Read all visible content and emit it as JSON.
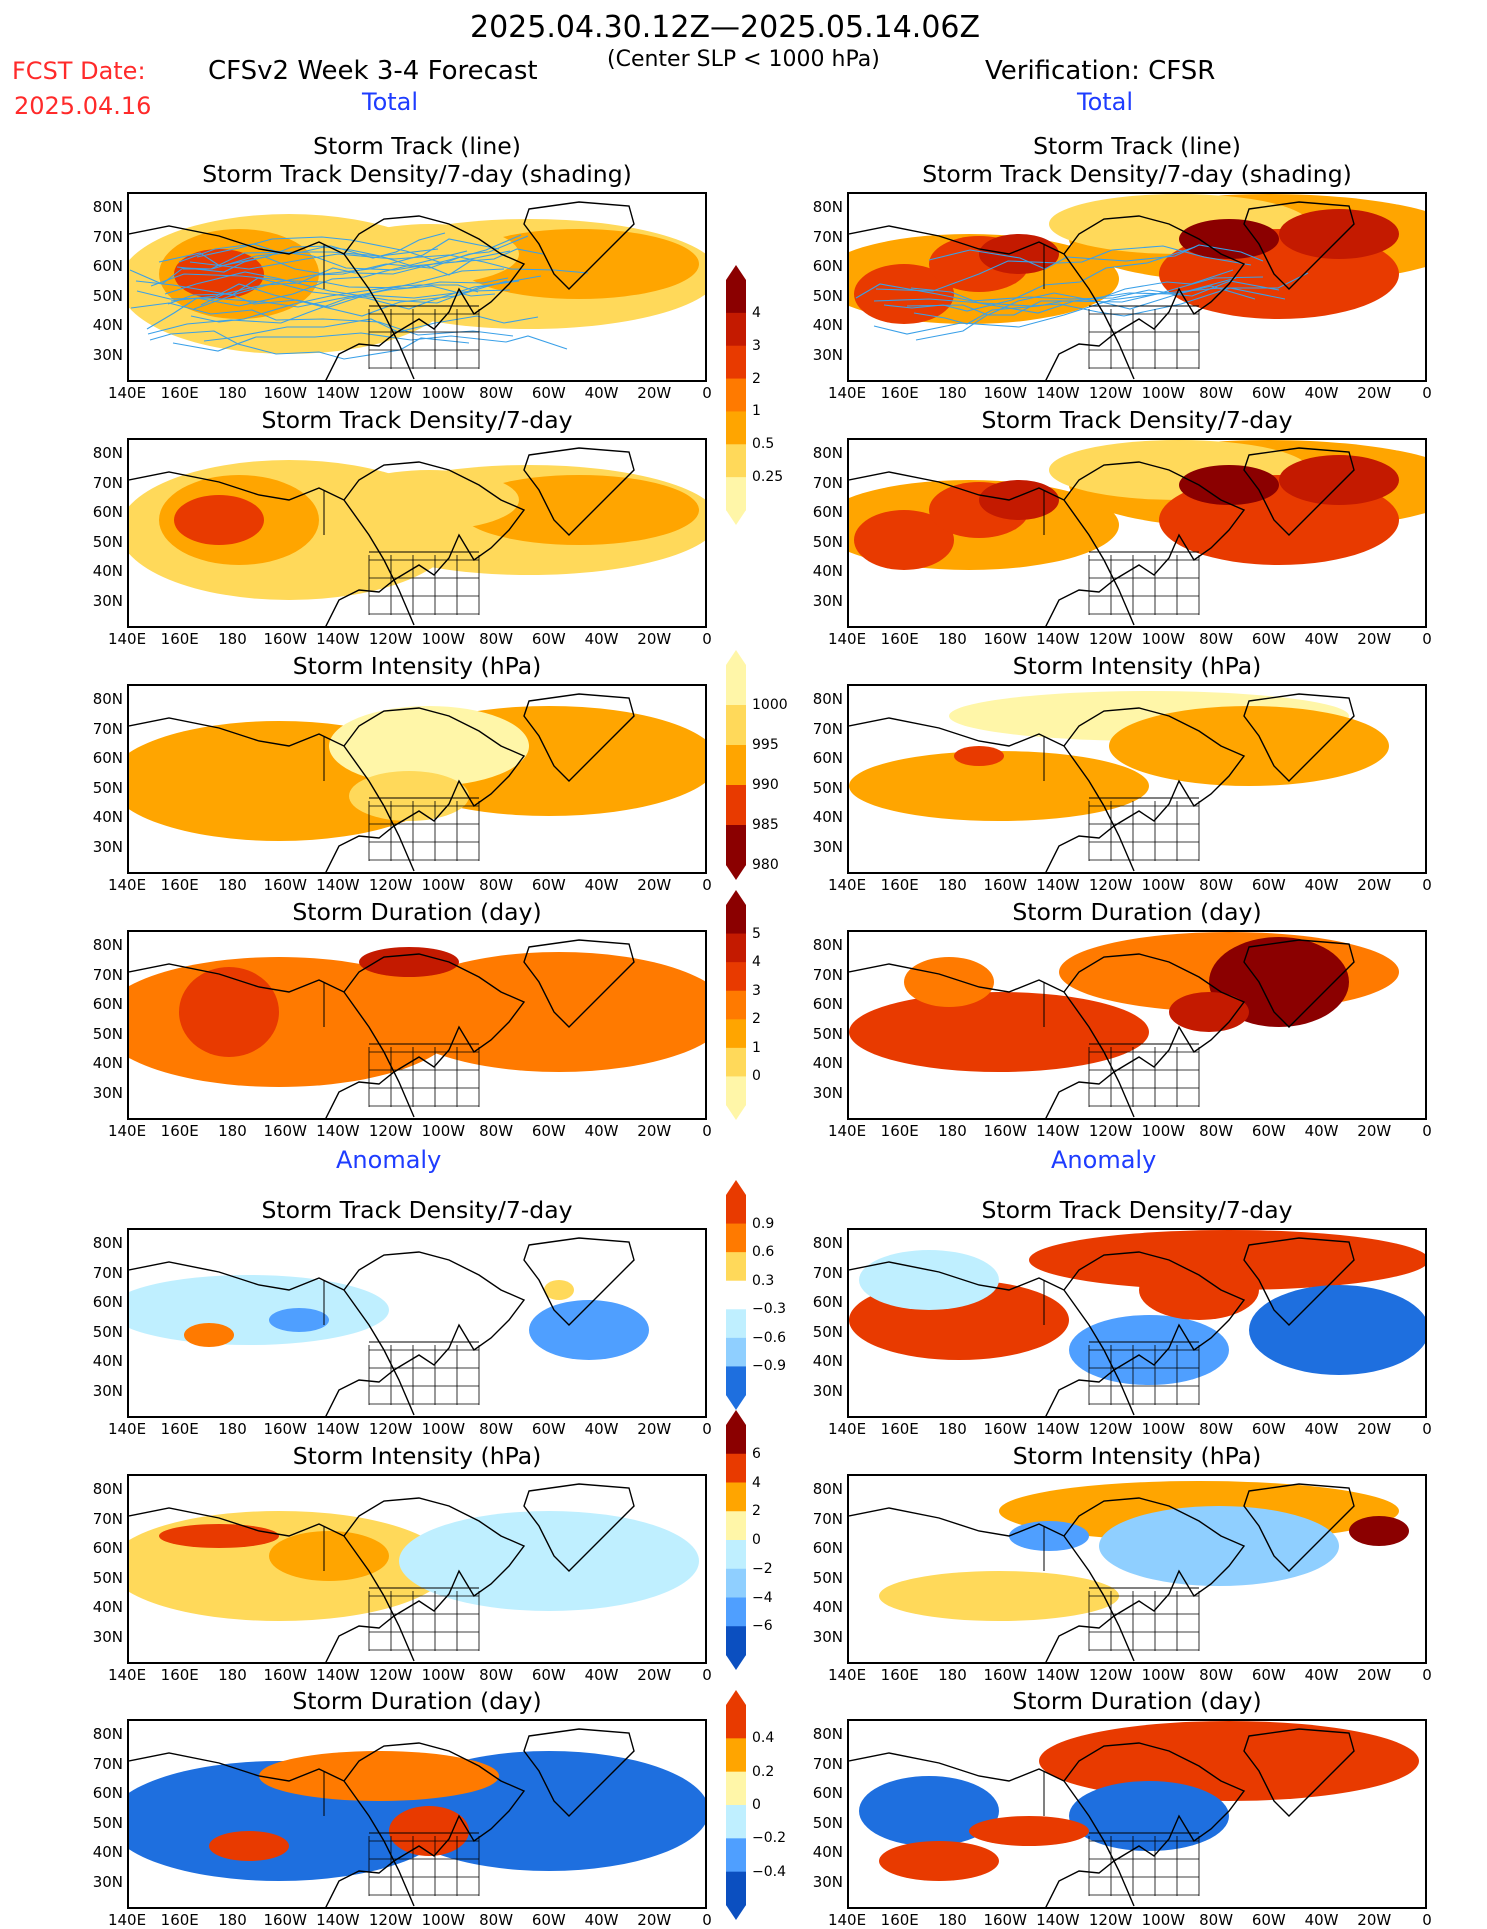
{
  "header": {
    "period": "2025.04.30.12Z—2025.05.14.06Z",
    "criteria": "(Center SLP < 1000 hPa)",
    "fcst_label": "FCST Date:",
    "fcst_date": "2025.04.16",
    "model_label": "CFSv2 Week 3-4 Forecast",
    "verification_label": "Verification: CFSR",
    "section_total": "Total",
    "section_anomaly": "Anomaly"
  },
  "panel_titles": {
    "track_line": "Storm Track (line)",
    "track_shading": "Storm Track Density/7-day (shading)",
    "density": "Storm Track Density/7-day",
    "intensity": "Storm Intensity (hPa)",
    "duration": "Storm Duration (day)"
  },
  "axes": {
    "y_ticks": [
      "80N",
      "70N",
      "60N",
      "50N",
      "40N",
      "30N"
    ],
    "x_ticks": [
      "140E",
      "160E",
      "180",
      "160W",
      "140W",
      "120W",
      "100W",
      "80W",
      "60W",
      "40W",
      "20W",
      "0"
    ]
  },
  "colors": {
    "warm": [
      "#fff6a8",
      "#ffd95a",
      "#ffa500",
      "#ff7a00",
      "#e83a00",
      "#c41a00",
      "#8b0000"
    ],
    "cool": [
      "#bfefff",
      "#8fcfff",
      "#4f9fff",
      "#1e6fdf",
      "#0b4fc0"
    ],
    "track_line": "#3aa0e8"
  },
  "colorbars": {
    "density_total": [
      "4",
      "3",
      "2",
      "1",
      "0.5",
      "0.25"
    ],
    "intensity_total": [
      "1000",
      "995",
      "990",
      "985",
      "980"
    ],
    "duration_total": [
      "5",
      "4",
      "3",
      "2",
      "1",
      "0"
    ],
    "density_anom": [
      "0.9",
      "0.6",
      "0.3",
      "−0.3",
      "−0.6",
      "−0.9"
    ],
    "intensity_anom": [
      "6",
      "4",
      "2",
      "0",
      "−2",
      "−4",
      "−6"
    ],
    "duration_anom": [
      "0.4",
      "0.2",
      "0",
      "−0.2",
      "−0.4"
    ]
  },
  "chart_data": [
    {
      "type": "heatmap",
      "panel": "forecast-total-track",
      "title": "Storm Track (line) / Storm Track Density/7-day (shading)",
      "region": "Forecast Total",
      "max_value_approx": 3
    },
    {
      "type": "heatmap",
      "panel": "verification-total-track",
      "title": "Storm Track (line) / Storm Track Density/7-day (shading)",
      "region": "Verification Total",
      "max_value_approx": 4
    },
    {
      "type": "heatmap",
      "panel": "forecast-total-density",
      "title": "Storm Track Density/7-day",
      "max_value_approx": 3
    },
    {
      "type": "heatmap",
      "panel": "verification-total-density",
      "title": "Storm Track Density/7-day",
      "max_value_approx": 4
    },
    {
      "type": "heatmap",
      "panel": "forecast-total-intensity",
      "title": "Storm Intensity (hPa)",
      "range": [
        990,
        1000
      ]
    },
    {
      "type": "heatmap",
      "panel": "verification-total-intensity",
      "title": "Storm Intensity (hPa)",
      "range": [
        985,
        1000
      ]
    },
    {
      "type": "heatmap",
      "panel": "forecast-total-duration",
      "title": "Storm Duration (day)",
      "range": [
        1,
        5
      ]
    },
    {
      "type": "heatmap",
      "panel": "verification-total-duration",
      "title": "Storm Duration (day)",
      "range": [
        1,
        5
      ]
    },
    {
      "type": "heatmap",
      "panel": "forecast-anom-density",
      "title": "Storm Track Density/7-day",
      "range": [
        -0.9,
        0.9
      ]
    },
    {
      "type": "heatmap",
      "panel": "verification-anom-density",
      "title": "Storm Track Density/7-day",
      "range": [
        -0.9,
        0.9
      ]
    },
    {
      "type": "heatmap",
      "panel": "forecast-anom-intensity",
      "title": "Storm Intensity (hPa)",
      "range": [
        -6,
        6
      ]
    },
    {
      "type": "heatmap",
      "panel": "verification-anom-intensity",
      "title": "Storm Intensity (hPa)",
      "range": [
        -6,
        6
      ]
    },
    {
      "type": "heatmap",
      "panel": "forecast-anom-duration",
      "title": "Storm Duration (day)",
      "range": [
        -0.4,
        0.4
      ]
    },
    {
      "type": "heatmap",
      "panel": "verification-anom-duration",
      "title": "Storm Duration (day)",
      "range": [
        -0.4,
        0.4
      ]
    }
  ]
}
